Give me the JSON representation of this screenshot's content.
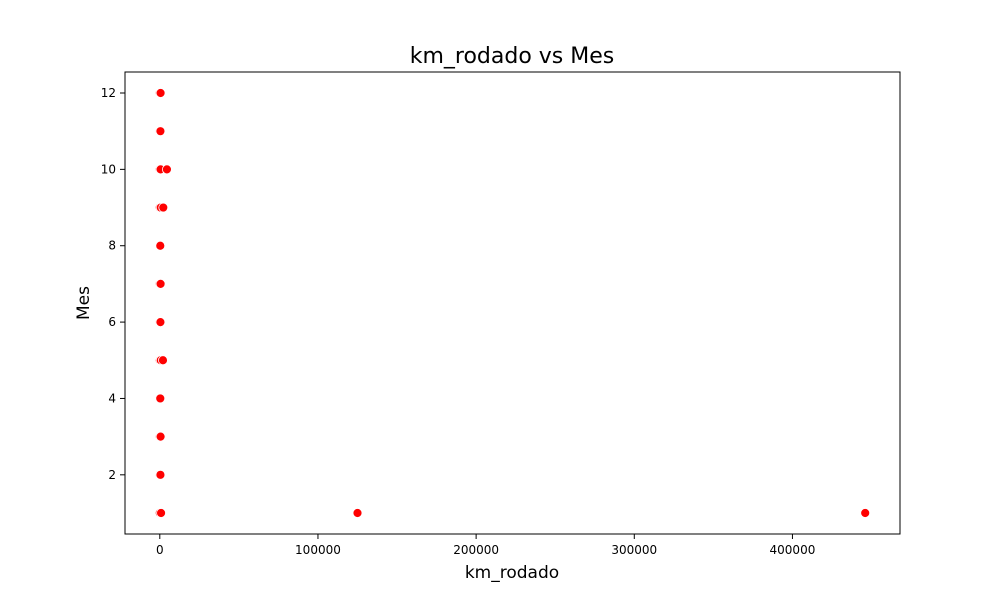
{
  "chart_data": {
    "type": "scatter",
    "title": "km_rodado vs Mes",
    "xlabel": "km_rodado",
    "ylabel": "Mes",
    "xlim": [
      -22000,
      468000
    ],
    "ylim": [
      0.45,
      12.55
    ],
    "xticks": [
      0,
      100000,
      200000,
      300000,
      400000
    ],
    "xtick_labels": [
      "0",
      "100000",
      "200000",
      "300000",
      "400000"
    ],
    "yticks": [
      2,
      4,
      6,
      8,
      10,
      12
    ],
    "ytick_labels": [
      "2",
      "4",
      "6",
      "8",
      "10",
      "12"
    ],
    "grid": false,
    "marker_color": "#ff0000",
    "series": [
      {
        "points": [
          {
            "x": 0,
            "y": 12
          },
          {
            "x": 500,
            "y": 12
          },
          {
            "x": 0,
            "y": 11
          },
          {
            "x": 400,
            "y": 11
          },
          {
            "x": 0,
            "y": 10
          },
          {
            "x": 500,
            "y": 10
          },
          {
            "x": 4500,
            "y": 10
          },
          {
            "x": 0,
            "y": 9
          },
          {
            "x": 600,
            "y": 9
          },
          {
            "x": 2200,
            "y": 9
          },
          {
            "x": 0,
            "y": 8
          },
          {
            "x": 300,
            "y": 8
          },
          {
            "x": 0,
            "y": 7
          },
          {
            "x": 500,
            "y": 7
          },
          {
            "x": 0,
            "y": 6
          },
          {
            "x": 400,
            "y": 6
          },
          {
            "x": 0,
            "y": 5
          },
          {
            "x": 600,
            "y": 5
          },
          {
            "x": 2000,
            "y": 5
          },
          {
            "x": 0,
            "y": 4
          },
          {
            "x": 300,
            "y": 4
          },
          {
            "x": 0,
            "y": 3
          },
          {
            "x": 500,
            "y": 3
          },
          {
            "x": 0,
            "y": 2
          },
          {
            "x": 400,
            "y": 2
          },
          {
            "x": 0,
            "y": 1
          },
          {
            "x": 800,
            "y": 1
          },
          {
            "x": 125000,
            "y": 1
          },
          {
            "x": 446000,
            "y": 1
          }
        ]
      }
    ]
  }
}
